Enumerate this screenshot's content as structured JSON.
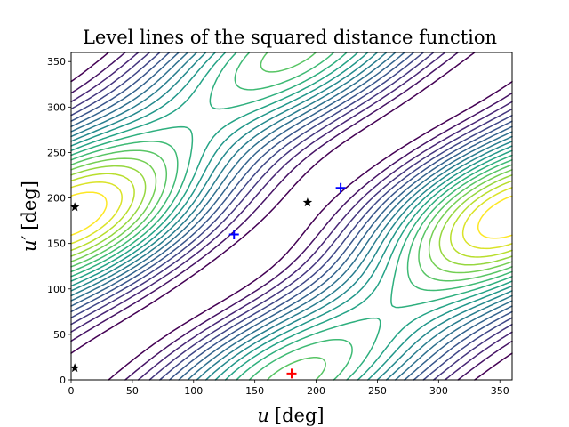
{
  "chart_data": {
    "type": "contour",
    "title": "Level lines of the squared distance function",
    "xlabel": {
      "var": "u",
      "unit": "[deg]"
    },
    "ylabel": {
      "var": "u′",
      "unit": "[deg]"
    },
    "xlim": [
      0,
      360
    ],
    "ylim": [
      0,
      360
    ],
    "xticks": [
      0,
      50,
      100,
      150,
      200,
      250,
      300,
      350
    ],
    "yticks": [
      0,
      50,
      100,
      150,
      200,
      250,
      300,
      350
    ],
    "colormap": "viridis",
    "contour_levels": 20,
    "grid": false,
    "legend": "none",
    "critical_points": [
      {
        "marker": "star",
        "color": "#000000",
        "u": 193,
        "u_prime": 195
      },
      {
        "marker": "star",
        "color": "#000000",
        "u": 3,
        "u_prime": 190
      },
      {
        "marker": "star",
        "color": "#000000",
        "u": 3,
        "u_prime": 13
      },
      {
        "marker": "plus",
        "color": "#0000ff",
        "u": 133,
        "u_prime": 160
      },
      {
        "marker": "plus",
        "color": "#0000ff",
        "u": 220,
        "u_prime": 211
      },
      {
        "marker": "plus",
        "color": "#ff0000",
        "u": 180,
        "u_prime": 7
      }
    ]
  }
}
